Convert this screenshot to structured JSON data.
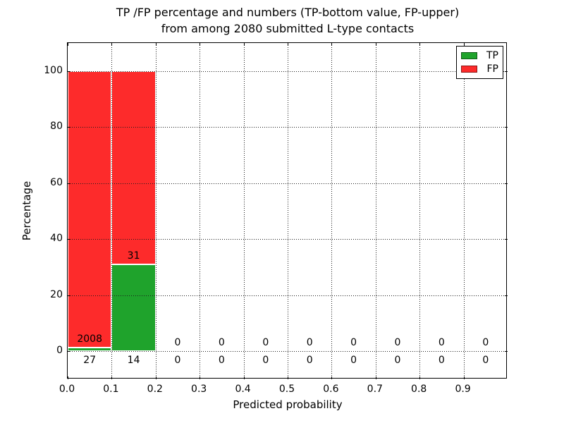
{
  "chart_data": {
    "type": "bar",
    "stacked": true,
    "title_line1": "TP /FP percentage and numbers (TP-bottom value, FP-upper)",
    "title_line2": "from among 2080 submitted L-type contacts",
    "xlabel": "Predicted probability",
    "ylabel": "Percentage",
    "total_contacts": 2080,
    "xlim": [
      0.0,
      1.0
    ],
    "ylim": [
      -10,
      110
    ],
    "x_ticks": [
      {
        "value": 0.0,
        "label": "0.0"
      },
      {
        "value": 0.1,
        "label": "0.1"
      },
      {
        "value": 0.2,
        "label": "0.2"
      },
      {
        "value": 0.3,
        "label": "0.3"
      },
      {
        "value": 0.4,
        "label": "0.4"
      },
      {
        "value": 0.5,
        "label": "0.5"
      },
      {
        "value": 0.6,
        "label": "0.6"
      },
      {
        "value": 0.7,
        "label": "0.7"
      },
      {
        "value": 0.8,
        "label": "0.8"
      },
      {
        "value": 0.9,
        "label": "0.9"
      }
    ],
    "y_ticks": [
      {
        "value": 0,
        "label": "0"
      },
      {
        "value": 20,
        "label": "20"
      },
      {
        "value": 40,
        "label": "40"
      },
      {
        "value": 60,
        "label": "60"
      },
      {
        "value": 80,
        "label": "80"
      },
      {
        "value": 100,
        "label": "100"
      }
    ],
    "grid": {
      "style": "dotted",
      "drawn_above_bars": true
    },
    "colors": {
      "tp": "#1fa32c",
      "fp": "#fd2b2b",
      "bar_edge": "#ffffff"
    },
    "legend": {
      "position": "upper right",
      "entries": [
        {
          "label": "TP",
          "color": "#1fa32c"
        },
        {
          "label": "FP",
          "color": "#fd2b2b"
        }
      ]
    },
    "bins": [
      {
        "range": [
          0.0,
          0.1
        ],
        "tp_count": 27,
        "fp_count": 2008,
        "tp_pct": 1.33,
        "fp_pct": 98.67
      },
      {
        "range": [
          0.1,
          0.2
        ],
        "tp_count": 14,
        "fp_count": 31,
        "tp_pct": 31.1,
        "fp_pct": 68.9
      },
      {
        "range": [
          0.2,
          0.3
        ],
        "tp_count": 0,
        "fp_count": 0,
        "tp_pct": 0,
        "fp_pct": 0
      },
      {
        "range": [
          0.3,
          0.4
        ],
        "tp_count": 0,
        "fp_count": 0,
        "tp_pct": 0,
        "fp_pct": 0
      },
      {
        "range": [
          0.4,
          0.5
        ],
        "tp_count": 0,
        "fp_count": 0,
        "tp_pct": 0,
        "fp_pct": 0
      },
      {
        "range": [
          0.5,
          0.6
        ],
        "tp_count": 0,
        "fp_count": 0,
        "tp_pct": 0,
        "fp_pct": 0
      },
      {
        "range": [
          0.6,
          0.7
        ],
        "tp_count": 0,
        "fp_count": 0,
        "tp_pct": 0,
        "fp_pct": 0
      },
      {
        "range": [
          0.7,
          0.8
        ],
        "tp_count": 0,
        "fp_count": 0,
        "tp_pct": 0,
        "fp_pct": 0
      },
      {
        "range": [
          0.8,
          0.9
        ],
        "tp_count": 0,
        "fp_count": 0,
        "tp_pct": 0,
        "fp_pct": 0
      },
      {
        "range": [
          0.9,
          1.0
        ],
        "tp_count": 0,
        "fp_count": 0,
        "tp_pct": 0,
        "fp_pct": 0
      }
    ]
  }
}
